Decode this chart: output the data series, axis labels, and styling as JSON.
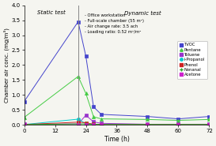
{
  "title_static": "Static test",
  "title_dynamic": "Dynamic test",
  "xlabel": "Time (h)",
  "ylabel": "Chamber air conc. (mg/m³)",
  "ylim": [
    0,
    4.0
  ],
  "xlim": [
    0,
    72
  ],
  "yticks": [
    0.0,
    0.5,
    1.0,
    1.5,
    2.0,
    2.5,
    3.0,
    3.5,
    4.0
  ],
  "xticks": [
    0,
    12,
    24,
    36,
    48,
    60,
    72
  ],
  "divider_x": 21,
  "annotation_text": "- Office workstation\n- Full-scale chamber (55 m²)\n- Air change rate: 3.5 ach\n- Loading ratio: 0.52 m²/m²",
  "series": {
    "TVOC": {
      "color": "#4444cc",
      "marker": "s",
      "markersize": 3,
      "x": [
        0,
        21,
        24,
        27,
        30,
        48,
        60,
        72
      ],
      "y": [
        0.78,
        3.45,
        2.3,
        0.6,
        0.35,
        0.28,
        0.2,
        0.28
      ]
    },
    "Pentane": {
      "color": "#44cc44",
      "marker": "^",
      "markersize": 3,
      "x": [
        0,
        21,
        24,
        27,
        30,
        48,
        60,
        72
      ],
      "y": [
        0.25,
        1.62,
        1.05,
        0.27,
        0.2,
        0.18,
        0.15,
        0.18
      ]
    },
    "Toluene": {
      "color": "#9933cc",
      "marker": "s",
      "markersize": 3,
      "x": [
        0,
        21,
        24,
        27,
        30,
        48,
        60,
        72
      ],
      "y": [
        0.02,
        0.03,
        0.32,
        0.1,
        0.05,
        0.02,
        0.02,
        0.02
      ]
    },
    "i-Propanol": {
      "color": "#00cccc",
      "marker": "o",
      "markersize": 3,
      "x": [
        0,
        21,
        24,
        27,
        30,
        48,
        60,
        72
      ],
      "y": [
        0.01,
        0.19,
        0.04,
        0.02,
        0.01,
        0.01,
        0.01,
        0.01
      ]
    },
    "Phenol": {
      "color": "#cc2222",
      "marker": "s",
      "markersize": 3,
      "x": [
        0,
        21,
        24,
        27,
        30,
        48,
        60,
        72
      ],
      "y": [
        0.01,
        0.09,
        0.07,
        0.02,
        0.01,
        0.01,
        0.01,
        0.01
      ]
    },
    "Nonanal": {
      "color": "#22aa22",
      "marker": "+",
      "markersize": 4,
      "x": [
        0,
        21,
        24,
        27,
        30,
        48,
        60,
        72
      ],
      "y": [
        0.01,
        0.03,
        0.03,
        0.02,
        0.01,
        0.01,
        0.01,
        0.01
      ]
    },
    "Acetone": {
      "color": "#cc22cc",
      "marker": "s",
      "markersize": 3,
      "x": [
        0,
        21,
        24,
        27,
        30,
        48,
        60,
        72
      ],
      "y": [
        0.005,
        0.005,
        0.005,
        0.005,
        0.005,
        0.005,
        0.005,
        0.005
      ]
    }
  },
  "background_color": "#f5f5f0"
}
